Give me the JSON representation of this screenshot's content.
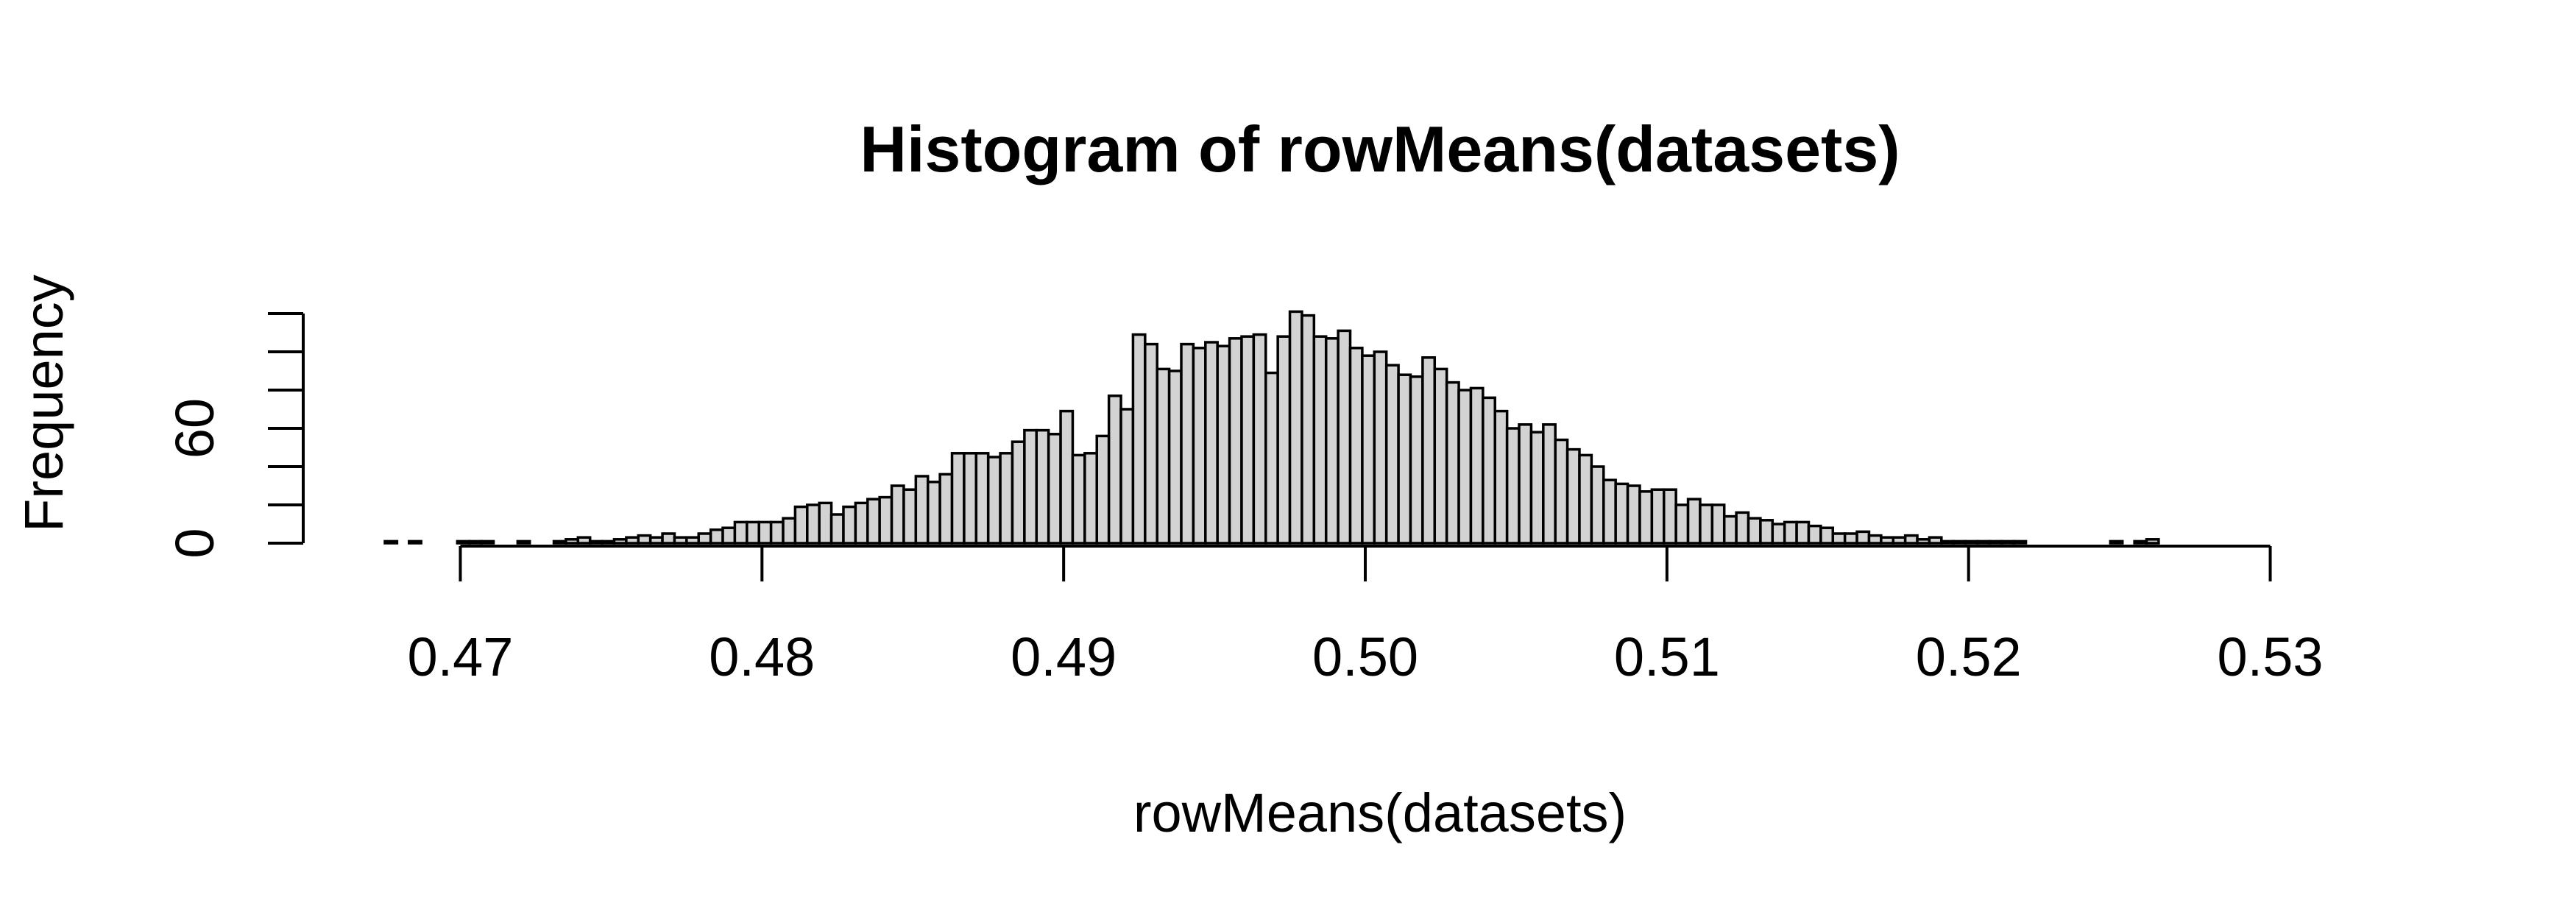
{
  "chart_data": {
    "type": "bar",
    "title": "Histogram of rowMeans(datasets)",
    "xlabel": "rowMeans(datasets)",
    "ylabel": "Frequency",
    "xlim": [
      0.4675,
      0.5335
    ],
    "ylim": [
      0,
      120
    ],
    "bin_width": 0.0004,
    "bin_start": 0.4675,
    "x_ticks": [
      "0.47",
      "0.48",
      "0.49",
      "0.50",
      "0.51",
      "0.52",
      "0.53"
    ],
    "x_tick_values": [
      0.47,
      0.48,
      0.49,
      0.5,
      0.51,
      0.52,
      0.53
    ],
    "y_ticks": [
      "0",
      "60"
    ],
    "y_tick_values": [
      0,
      60
    ],
    "y_axis_ticks": [
      0,
      20,
      40,
      60,
      80,
      100,
      120
    ],
    "grid": false,
    "bar_fill": "#d3d3d3",
    "bar_stroke": "#000000",
    "values": [
      1,
      0,
      1,
      0,
      0,
      0,
      1,
      1,
      1,
      0,
      0,
      1,
      0,
      0,
      1,
      2,
      3,
      1,
      1,
      2,
      3,
      4,
      3,
      5,
      3,
      3,
      5,
      7,
      8,
      11,
      11,
      11,
      11,
      13,
      19,
      20,
      21,
      15,
      19,
      21,
      23,
      24,
      30,
      28,
      35,
      32,
      36,
      47,
      47,
      47,
      45,
      47,
      53,
      59,
      59,
      57,
      69,
      46,
      47,
      56,
      77,
      70,
      109,
      104,
      91,
      90,
      104,
      102,
      105,
      103,
      107,
      108,
      109,
      89,
      108,
      121,
      119,
      108,
      107,
      111,
      102,
      98,
      100,
      93,
      88,
      87,
      97,
      91,
      84,
      80,
      81,
      76,
      69,
      60,
      62,
      58,
      62,
      54,
      49,
      46,
      40,
      33,
      31,
      30,
      27,
      28,
      28,
      20,
      23,
      20,
      20,
      14,
      16,
      13,
      12,
      10,
      11,
      11,
      9,
      8,
      5,
      5,
      6,
      4,
      3,
      3,
      4,
      2,
      3,
      1,
      1,
      1,
      1,
      1,
      1,
      1,
      0,
      0,
      0,
      0,
      0,
      0,
      0,
      1,
      0,
      1,
      2,
      0
    ]
  }
}
